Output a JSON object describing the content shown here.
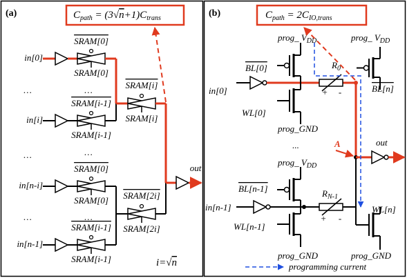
{
  "panel_a": {
    "label": "(a)",
    "formula": {
      "c": "C",
      "sub": "path",
      "mid": " = (3√",
      "radicand": "n",
      "end": "+1)C",
      "sub2": "trans"
    },
    "inputs": [
      "in[0]",
      "in[i]",
      "in[n-i]",
      "in[n-1]"
    ],
    "sram_top": [
      "SRAM[0]",
      "SRAM[i-1]",
      "SRAM[0]",
      "SRAM[i-1]"
    ],
    "sram_bottom": [
      "SRAM[0]",
      "SRAM[i-1]",
      "SRAM[0]",
      "SRAM[i-1]"
    ],
    "stage2_top": [
      "SRAM[i]",
      "SRAM[2i]"
    ],
    "stage2_bottom": [
      "SRAM[i]",
      "SRAM[2i]"
    ],
    "ellipses": [
      "…",
      "…",
      "…",
      "…",
      "…",
      "…"
    ],
    "output": "out",
    "note": {
      "text": "i=√",
      "radicand": "n"
    }
  },
  "panel_b": {
    "label": "(b)",
    "formula": {
      "c": "C",
      "sub": "path",
      "mid": " = 2C",
      "sub2": "IO,trans"
    },
    "vdd": [
      {
        "main": "prog_ V",
        "sub": "DD"
      },
      {
        "main": "prog_ V",
        "sub": "DD"
      },
      {
        "main": "prog_ V",
        "sub": "DD"
      }
    ],
    "gnd": [
      "prog_GND",
      "prog_GND",
      "prog_GND"
    ],
    "bl": [
      "BL[0]",
      "BL[n]",
      "BL[n-1]"
    ],
    "wl": [
      "WL[0]",
      "WL[n-1]",
      "WL[n]"
    ],
    "inputs": [
      "in[0]",
      "in[n-1]"
    ],
    "resistors": [
      {
        "main": "R",
        "sub": "0"
      },
      {
        "main": "R",
        "sub": "N-1"
      }
    ],
    "signs": [
      "+",
      "-",
      "+",
      "-"
    ],
    "ellipsis": "...",
    "node": "A",
    "output": "out",
    "legend": "programming current"
  }
}
